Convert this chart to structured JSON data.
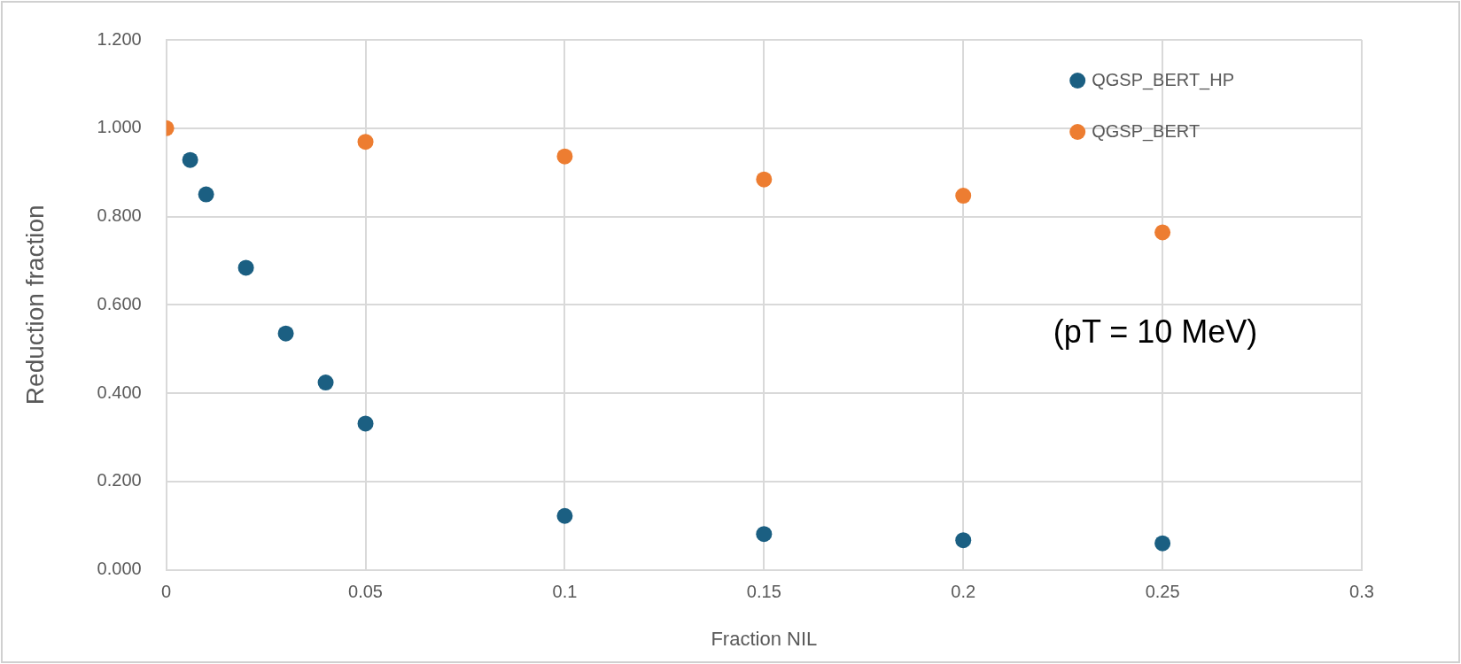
{
  "chart_data": {
    "type": "scatter",
    "xlabel": "Fraction NIL",
    "ylabel": "Reduction fraction",
    "annotations": [
      "(pT = 10 MeV)"
    ],
    "series": [
      {
        "name": "QGSP_BERT_HP",
        "color": "#1b5f82",
        "x": [
          0.006,
          0.01,
          0.02,
          0.03,
          0.04,
          0.05,
          0.1,
          0.15,
          0.2,
          0.25
        ],
        "values": [
          0.928,
          0.85,
          0.684,
          0.535,
          0.424,
          0.331,
          0.122,
          0.081,
          0.067,
          0.06
        ]
      },
      {
        "name": "QGSP_BERT",
        "color": "#ed7d31",
        "x": [
          0,
          0.05,
          0.1,
          0.15,
          0.2,
          0.25
        ],
        "values": [
          1.0,
          0.969,
          0.936,
          0.884,
          0.847,
          0.764
        ]
      }
    ],
    "xlim": [
      0,
      0.3
    ],
    "xticks": [
      0,
      0.05,
      0.1,
      0.15,
      0.2,
      0.25,
      0.3
    ],
    "ylim": [
      0,
      1.2
    ],
    "yticks": [
      {
        "value": 0,
        "label": "0.000"
      },
      {
        "value": 0.2,
        "label": "0.200"
      },
      {
        "value": 0.4,
        "label": "0.400"
      },
      {
        "value": 0.6,
        "label": "0.600"
      },
      {
        "value": 0.8,
        "label": "0.800"
      },
      {
        "value": 1.0,
        "label": "1.000"
      },
      {
        "value": 1.2,
        "label": "1.200"
      }
    ],
    "grid": true,
    "legend": "top right",
    "marker": "circle"
  }
}
